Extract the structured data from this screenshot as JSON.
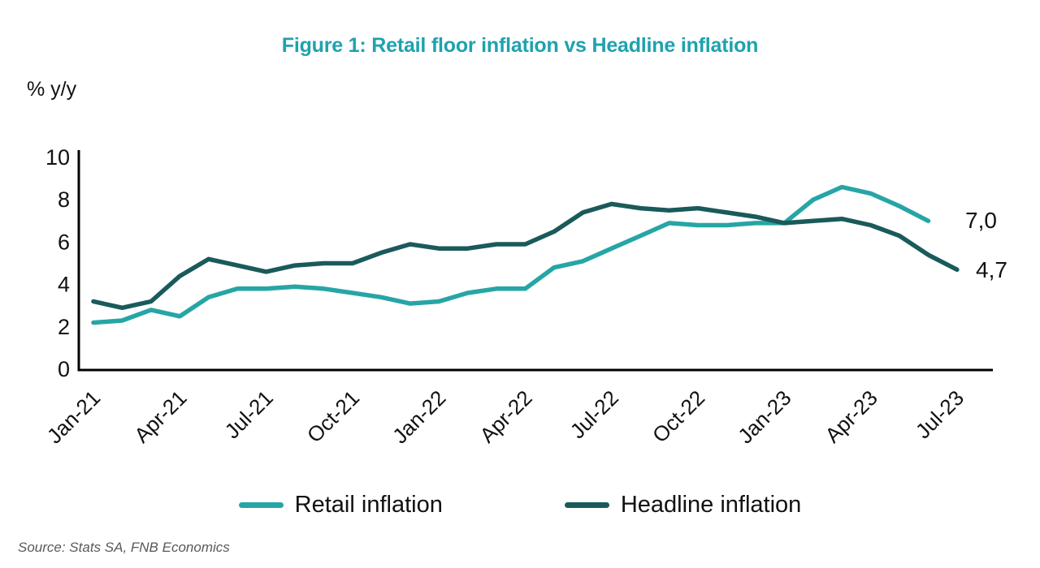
{
  "title": "Figure 1: Retail floor inflation vs Headline inflation",
  "source": "Source: Stats SA, FNB Economics",
  "colors": {
    "title": "#1EA2AE",
    "retail_line": "#27A5A6",
    "headline_line": "#1A5A5B",
    "axis": "#000000",
    "source_text": "#595959"
  },
  "chart_data": {
    "type": "line",
    "title": "Figure 1: Retail floor inflation vs Headline inflation",
    "ylabel": "% y/y",
    "xlabel": "",
    "ylim": [
      0,
      10
    ],
    "y_ticks": [
      0,
      2,
      4,
      6,
      8,
      10
    ],
    "x_tick_labels": [
      "Jan-21",
      "Apr-21",
      "Jul-21",
      "Oct-21",
      "Jan-22",
      "Apr-22",
      "Jul-22",
      "Oct-22",
      "Jan-23",
      "Apr-23",
      "Jul-23"
    ],
    "categories": [
      "Jan-21",
      "Feb-21",
      "Mar-21",
      "Apr-21",
      "May-21",
      "Jun-21",
      "Jul-21",
      "Aug-21",
      "Sep-21",
      "Oct-21",
      "Nov-21",
      "Dec-21",
      "Jan-22",
      "Feb-22",
      "Mar-22",
      "Apr-22",
      "May-22",
      "Jun-22",
      "Jul-22",
      "Aug-22",
      "Sep-22",
      "Oct-22",
      "Nov-22",
      "Dec-22",
      "Jan-23",
      "Feb-23",
      "Mar-23",
      "Apr-23",
      "May-23",
      "Jun-23",
      "Jul-23"
    ],
    "grid": false,
    "legend_position": "bottom",
    "series": [
      {
        "name": "Retail inflation",
        "color": "#27A5A6",
        "end_label": "7,0",
        "values": [
          2.2,
          2.3,
          2.8,
          2.5,
          3.4,
          3.8,
          3.8,
          3.9,
          3.8,
          3.6,
          3.4,
          3.1,
          3.2,
          3.6,
          3.8,
          3.8,
          4.8,
          5.1,
          5.7,
          6.3,
          6.9,
          6.8,
          6.8,
          6.9,
          6.9,
          8.0,
          8.6,
          8.3,
          7.7,
          7.0
        ]
      },
      {
        "name": "Headline inflation",
        "color": "#1A5A5B",
        "end_label": "4,7",
        "values": [
          3.2,
          2.9,
          3.2,
          4.4,
          5.2,
          4.9,
          4.6,
          4.9,
          5.0,
          5.0,
          5.5,
          5.9,
          5.7,
          5.7,
          5.9,
          5.9,
          6.5,
          7.4,
          7.8,
          7.6,
          7.5,
          7.6,
          7.4,
          7.2,
          6.9,
          7.0,
          7.1,
          6.8,
          6.3,
          5.4,
          4.7
        ]
      }
    ]
  }
}
